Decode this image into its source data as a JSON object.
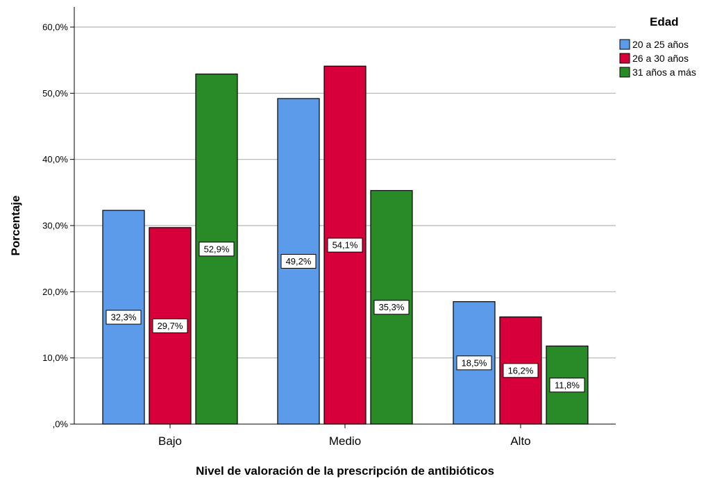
{
  "chart_data": {
    "type": "bar",
    "title": "",
    "xlabel": "Nivel de valoración de la prescripción de antibióticos",
    "ylabel": "Porcentaje",
    "categories": [
      "Bajo",
      "Medio",
      "Alto"
    ],
    "ylim": [
      0,
      60
    ],
    "yticks": [
      0,
      10,
      20,
      30,
      40,
      50,
      60
    ],
    "ytick_labels": [
      ",0%",
      "10,0%",
      "20,0%",
      "30,0%",
      "40,0%",
      "50,0%",
      "60,0%"
    ],
    "grid": true,
    "legend": {
      "title": "Edad",
      "placement": "top-right"
    },
    "series": [
      {
        "name": "20 a 25 años",
        "color": "#5b9bea",
        "values": [
          32.3,
          49.2,
          18.5
        ],
        "labels": [
          "32,3%",
          "49,2%",
          "18,5%"
        ]
      },
      {
        "name": "26 a 30 años",
        "color": "#d8003a",
        "values": [
          29.7,
          54.1,
          16.2
        ],
        "labels": [
          "29,7%",
          "54,1%",
          "16,2%"
        ]
      },
      {
        "name": "31 años a  más",
        "color": "#288b28",
        "values": [
          52.9,
          35.3,
          11.8
        ],
        "labels": [
          "52,9%",
          "35,3%",
          "11,8%"
        ]
      }
    ]
  }
}
